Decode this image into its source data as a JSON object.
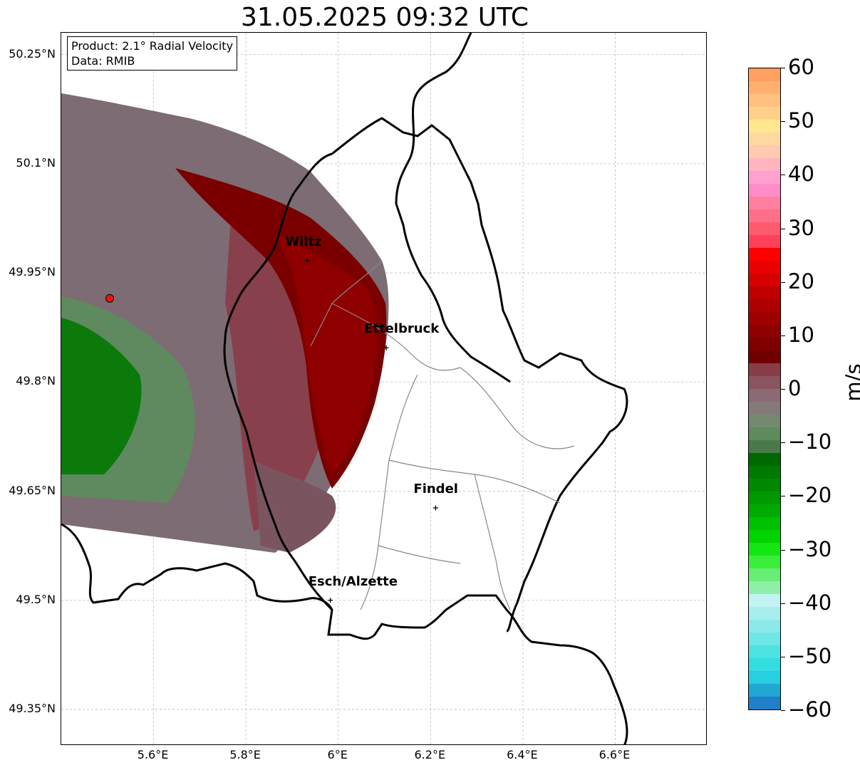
{
  "title": "31.05.2025 09:32 UTC",
  "info_box": {
    "product_line": "Product: 2.1° Radial Velocity",
    "data_line": "Data: RMIB"
  },
  "map": {
    "lon_range": [
      5.4,
      6.8
    ],
    "lat_range": [
      49.3,
      50.28
    ],
    "lon_ticks": [
      {
        "value": 5.6,
        "label": "5.6°E"
      },
      {
        "value": 5.8,
        "label": "5.8°E"
      },
      {
        "value": 6.0,
        "label": "6°E"
      },
      {
        "value": 6.2,
        "label": "6.2°E"
      },
      {
        "value": 6.4,
        "label": "6.4°E"
      },
      {
        "value": 6.6,
        "label": "6.6°E"
      }
    ],
    "lat_ticks": [
      {
        "value": 50.25,
        "label": "50.25°N"
      },
      {
        "value": 50.1,
        "label": "50.1°N"
      },
      {
        "value": 49.95,
        "label": "49.95°N"
      },
      {
        "value": 49.8,
        "label": "49.8°N"
      },
      {
        "value": 49.65,
        "label": "49.65°N"
      },
      {
        "value": 49.5,
        "label": "49.5°N"
      },
      {
        "value": 49.35,
        "label": "49.35°N"
      }
    ],
    "grid": true,
    "radar_site": {
      "lon": 5.505,
      "lat": 49.915,
      "color": "#ee1111"
    },
    "cities": [
      {
        "name": "Wiltz",
        "lon": 5.933,
        "lat": 49.967
      },
      {
        "name": "Ettelbruck",
        "lon": 6.104,
        "lat": 49.847
      },
      {
        "name": "Findel",
        "lon": 6.211,
        "lat": 49.627
      },
      {
        "name": "Esch/Alzette",
        "lon": 5.983,
        "lat": 49.5
      }
    ]
  },
  "colorbar": {
    "unit": "m/s",
    "min": -60,
    "max": 60,
    "ticks": [
      "60",
      "50",
      "40",
      "30",
      "20",
      "10",
      "0",
      "−10",
      "−20",
      "−30",
      "−40",
      "−50",
      "−60"
    ],
    "colors": [
      "#1f7fc8",
      "#22a6d2",
      "#27cfe0",
      "#33dde0",
      "#4ee2e2",
      "#6ee6e6",
      "#8ce9e9",
      "#a8eeee",
      "#c2f2f2",
      "#8ef0a8",
      "#66ee77",
      "#3cee3c",
      "#14e614",
      "#00d400",
      "#00c000",
      "#00aa00",
      "#009800",
      "#008800",
      "#007a00",
      "#006800",
      "#4a7a4a",
      "#5e8a5e",
      "#738a6e",
      "#857a7a",
      "#8a6a74",
      "#8a5460",
      "#883c48",
      "#700000",
      "#800000",
      "#8e0000",
      "#9e0000",
      "#ae0000",
      "#c00000",
      "#d60000",
      "#ea0000",
      "#ff0000",
      "#ff4058",
      "#ff5a6e",
      "#ff7088",
      "#ff7fa0",
      "#ff8cc8",
      "#ffa0d0",
      "#ffb4c0",
      "#ffcab0",
      "#ffd8a0",
      "#ffe890",
      "#ffd08a",
      "#ffc080",
      "#ffb070",
      "#ffa060"
    ]
  }
}
